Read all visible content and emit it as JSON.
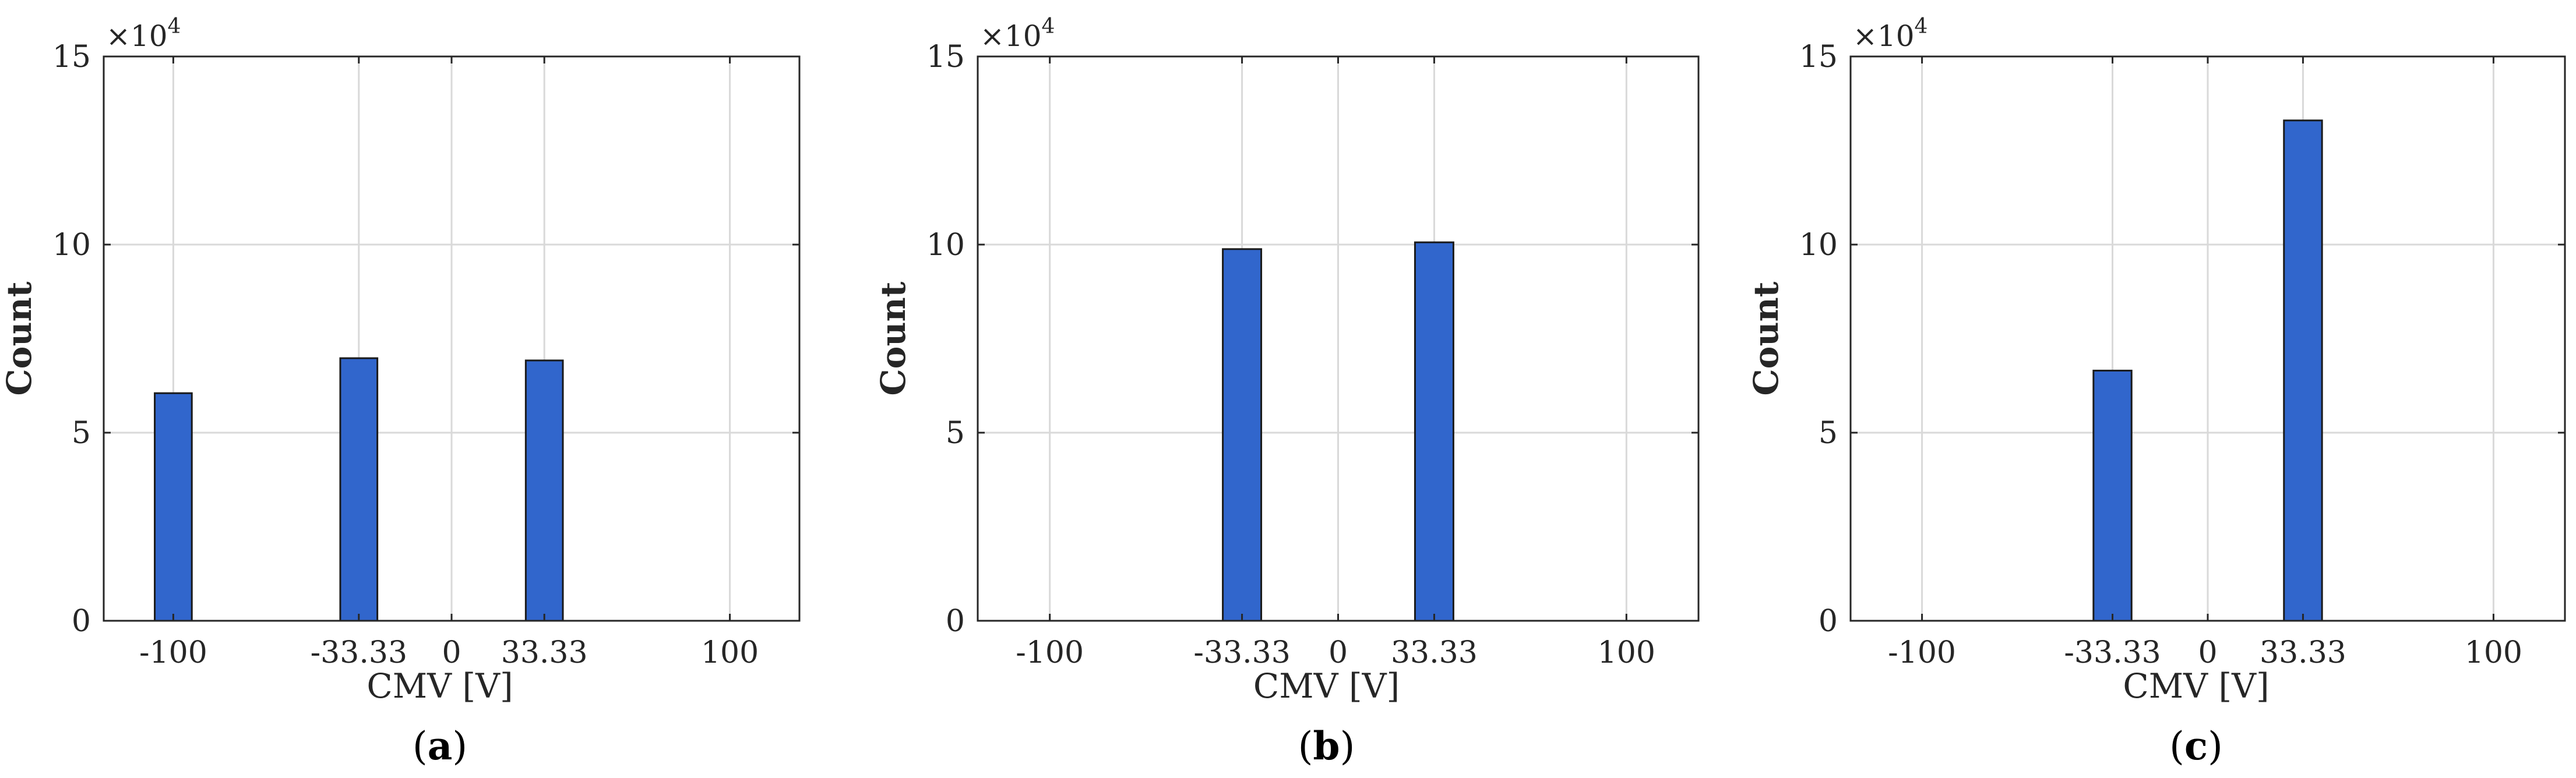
{
  "colors": {
    "bar": "#3166CC"
  },
  "chart_data": [
    {
      "type": "bar",
      "caption_open": "(",
      "caption_letter": "a",
      "caption_close": ")",
      "xlabel": "CMV [V]",
      "ylabel": "Count",
      "multiplier_base": "×10",
      "multiplier_exp": "4",
      "xlim": [
        -125,
        125
      ],
      "ylim": [
        0,
        150000
      ],
      "xticks": [
        -100,
        -33.33,
        0,
        33.33,
        100
      ],
      "xtick_labels": [
        "-100",
        "-33.33",
        "0",
        "33.33",
        "100"
      ],
      "yticks": [
        0,
        50000,
        100000,
        150000
      ],
      "ytick_labels": [
        "0",
        "5",
        "10",
        "15"
      ],
      "bar_width": 13.33,
      "grid": true,
      "x": [
        -100,
        -33.33,
        33.33
      ],
      "values": [
        60500,
        69800,
        69200
      ]
    },
    {
      "type": "bar",
      "caption_open": "(",
      "caption_letter": "b",
      "caption_close": ")",
      "xlabel": "CMV [V]",
      "ylabel": "Count",
      "multiplier_base": "×10",
      "multiplier_exp": "4",
      "xlim": [
        -125,
        125
      ],
      "ylim": [
        0,
        150000
      ],
      "xticks": [
        -100,
        -33.33,
        0,
        33.33,
        100
      ],
      "xtick_labels": [
        "-100",
        "-33.33",
        "0",
        "33.33",
        "100"
      ],
      "yticks": [
        0,
        50000,
        100000,
        150000
      ],
      "ytick_labels": [
        "0",
        "5",
        "10",
        "15"
      ],
      "bar_width": 13.33,
      "grid": true,
      "x": [
        -33.33,
        33.33
      ],
      "values": [
        98800,
        100600
      ]
    },
    {
      "type": "bar",
      "caption_open": "(",
      "caption_letter": "c",
      "caption_close": ")",
      "xlabel": "CMV [V]",
      "ylabel": "Count",
      "multiplier_base": "×10",
      "multiplier_exp": "4",
      "xlim": [
        -125,
        125
      ],
      "ylim": [
        0,
        150000
      ],
      "xticks": [
        -100,
        -33.33,
        0,
        33.33,
        100
      ],
      "xtick_labels": [
        "-100",
        "-33.33",
        "0",
        "33.33",
        "100"
      ],
      "yticks": [
        0,
        50000,
        100000,
        150000
      ],
      "ytick_labels": [
        "0",
        "5",
        "10",
        "15"
      ],
      "bar_width": 13.33,
      "grid": true,
      "x": [
        -33.33,
        33.33
      ],
      "values": [
        66500,
        133000
      ]
    }
  ]
}
